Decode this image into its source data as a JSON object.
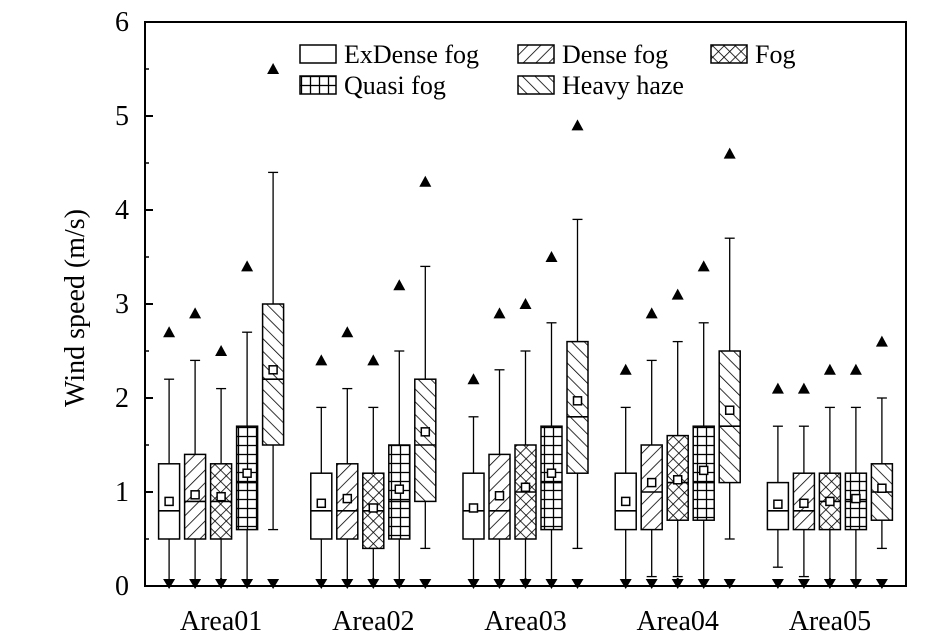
{
  "chart_data": {
    "type": "box",
    "title": "",
    "ylabel": "Wind speed (m/s)",
    "xlabel": "",
    "ylim": [
      0,
      6
    ],
    "y_ticks": [
      "0",
      "1",
      "2",
      "3",
      "4",
      "5",
      "6"
    ],
    "categories": [
      "Area01",
      "Area02",
      "Area03",
      "Area04",
      "Area05"
    ],
    "legend_position": "top",
    "series": [
      {
        "name": "ExDense fog",
        "pattern": "blank",
        "stats": [
          {
            "min": 0.0,
            "whisker_low": 0.0,
            "q1": 0.5,
            "median": 0.8,
            "mean": 0.9,
            "q3": 1.3,
            "whisker_high": 2.2,
            "max": 2.7
          },
          {
            "min": 0.0,
            "whisker_low": 0.0,
            "q1": 0.5,
            "median": 0.8,
            "mean": 0.88,
            "q3": 1.2,
            "whisker_high": 1.9,
            "max": 2.4
          },
          {
            "min": 0.0,
            "whisker_low": 0.0,
            "q1": 0.5,
            "median": 0.8,
            "mean": 0.83,
            "q3": 1.2,
            "whisker_high": 1.8,
            "max": 2.2
          },
          {
            "min": 0.0,
            "whisker_low": 0.0,
            "q1": 0.6,
            "median": 0.8,
            "mean": 0.9,
            "q3": 1.2,
            "whisker_high": 1.9,
            "max": 2.3
          },
          {
            "min": 0.0,
            "whisker_low": 0.2,
            "q1": 0.6,
            "median": 0.8,
            "mean": 0.87,
            "q3": 1.1,
            "whisker_high": 1.7,
            "max": 2.1
          }
        ]
      },
      {
        "name": "Dense fog",
        "pattern": "diag-up",
        "stats": [
          {
            "min": 0.0,
            "whisker_low": 0.0,
            "q1": 0.5,
            "median": 0.9,
            "mean": 0.97,
            "q3": 1.4,
            "whisker_high": 2.4,
            "max": 2.9
          },
          {
            "min": 0.0,
            "whisker_low": 0.0,
            "q1": 0.5,
            "median": 0.8,
            "mean": 0.93,
            "q3": 1.3,
            "whisker_high": 2.1,
            "max": 2.7
          },
          {
            "min": 0.0,
            "whisker_low": 0.0,
            "q1": 0.5,
            "median": 0.8,
            "mean": 0.96,
            "q3": 1.4,
            "whisker_high": 2.3,
            "max": 2.9
          },
          {
            "min": 0.0,
            "whisker_low": 0.1,
            "q1": 0.6,
            "median": 1.0,
            "mean": 1.1,
            "q3": 1.5,
            "whisker_high": 2.4,
            "max": 2.9
          },
          {
            "min": 0.0,
            "whisker_low": 0.1,
            "q1": 0.6,
            "median": 0.8,
            "mean": 0.88,
            "q3": 1.2,
            "whisker_high": 1.7,
            "max": 2.1
          }
        ]
      },
      {
        "name": "Fog",
        "pattern": "crosshatch",
        "stats": [
          {
            "min": 0.0,
            "whisker_low": 0.0,
            "q1": 0.5,
            "median": 0.9,
            "mean": 0.95,
            "q3": 1.3,
            "whisker_high": 2.1,
            "max": 2.5
          },
          {
            "min": 0.0,
            "whisker_low": 0.0,
            "q1": 0.4,
            "median": 0.8,
            "mean": 0.83,
            "q3": 1.2,
            "whisker_high": 1.9,
            "max": 2.4
          },
          {
            "min": 0.0,
            "whisker_low": 0.0,
            "q1": 0.5,
            "median": 1.0,
            "mean": 1.05,
            "q3": 1.5,
            "whisker_high": 2.5,
            "max": 3.0
          },
          {
            "min": 0.0,
            "whisker_low": 0.1,
            "q1": 0.7,
            "median": 1.1,
            "mean": 1.13,
            "q3": 1.6,
            "whisker_high": 2.6,
            "max": 3.1
          },
          {
            "min": 0.0,
            "whisker_low": 0.0,
            "q1": 0.6,
            "median": 0.9,
            "mean": 0.9,
            "q3": 1.2,
            "whisker_high": 1.9,
            "max": 2.3
          }
        ]
      },
      {
        "name": "Quasi fog",
        "pattern": "grid",
        "stats": [
          {
            "min": 0.0,
            "whisker_low": 0.0,
            "q1": 0.6,
            "median": 1.1,
            "mean": 1.2,
            "q3": 1.7,
            "whisker_high": 2.7,
            "max": 3.4
          },
          {
            "min": 0.0,
            "whisker_low": 0.0,
            "q1": 0.5,
            "median": 0.9,
            "mean": 1.03,
            "q3": 1.5,
            "whisker_high": 2.5,
            "max": 3.2
          },
          {
            "min": 0.0,
            "whisker_low": 0.0,
            "q1": 0.6,
            "median": 1.1,
            "mean": 1.2,
            "q3": 1.7,
            "whisker_high": 2.8,
            "max": 3.5
          },
          {
            "min": 0.0,
            "whisker_low": 0.0,
            "q1": 0.7,
            "median": 1.1,
            "mean": 1.23,
            "q3": 1.7,
            "whisker_high": 2.8,
            "max": 3.4
          },
          {
            "min": 0.0,
            "whisker_low": 0.0,
            "q1": 0.6,
            "median": 0.9,
            "mean": 0.93,
            "q3": 1.2,
            "whisker_high": 1.9,
            "max": 2.3
          }
        ]
      },
      {
        "name": "Heavy haze",
        "pattern": "diag-down",
        "stats": [
          {
            "min": 0.0,
            "whisker_low": 0.6,
            "q1": 1.5,
            "median": 2.2,
            "mean": 2.3,
            "q3": 3.0,
            "whisker_high": 4.4,
            "max": 5.5
          },
          {
            "min": 0.0,
            "whisker_low": 0.4,
            "q1": 0.9,
            "median": 1.5,
            "mean": 1.64,
            "q3": 2.2,
            "whisker_high": 3.4,
            "max": 4.3
          },
          {
            "min": 0.0,
            "whisker_low": 0.4,
            "q1": 1.2,
            "median": 1.8,
            "mean": 1.97,
            "q3": 2.6,
            "whisker_high": 3.9,
            "max": 4.9
          },
          {
            "min": 0.0,
            "whisker_low": 0.5,
            "q1": 1.1,
            "median": 1.7,
            "mean": 1.87,
            "q3": 2.5,
            "whisker_high": 3.7,
            "max": 4.6
          },
          {
            "min": 0.0,
            "whisker_low": 0.4,
            "q1": 0.7,
            "median": 1.0,
            "mean": 1.04,
            "q3": 1.3,
            "whisker_high": 2.0,
            "max": 2.6
          }
        ]
      }
    ]
  }
}
